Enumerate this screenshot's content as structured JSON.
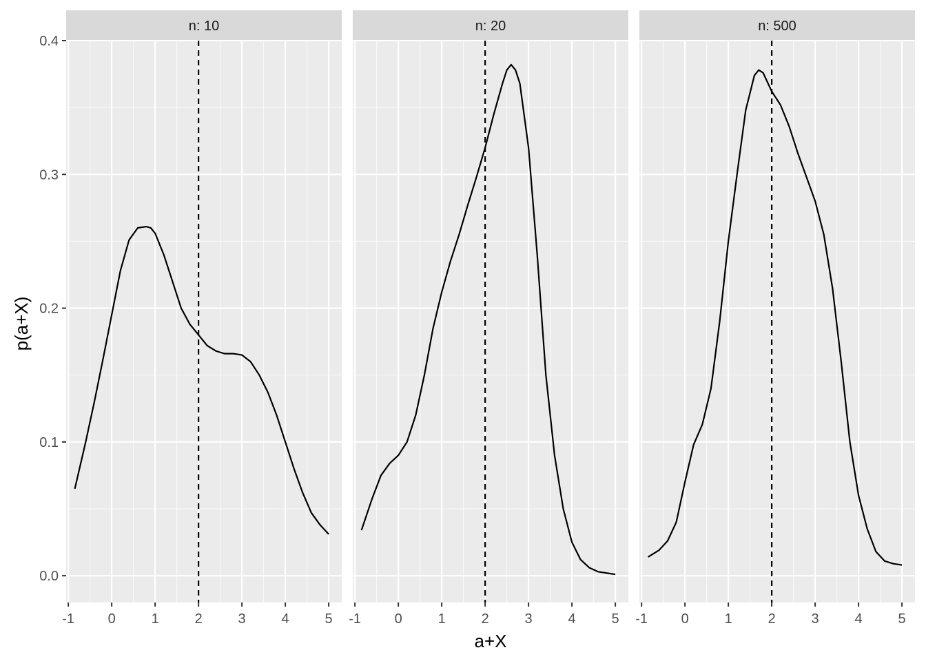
{
  "chart_data": {
    "type": "line",
    "facet_label_prefix": "n: ",
    "xlabel": "a+X",
    "ylabel": "p(a+X)",
    "xlim": [
      -1.05,
      5.3
    ],
    "ylim": [
      -0.02,
      0.4
    ],
    "x_ticks": [
      -1,
      0,
      1,
      2,
      3,
      4,
      5
    ],
    "x_tick_labels": [
      "-1",
      "0",
      "1",
      "2",
      "3",
      "4",
      "5"
    ],
    "y_ticks": [
      0.0,
      0.1,
      0.2,
      0.3,
      0.4
    ],
    "y_tick_labels": [
      "0.0",
      "0.1",
      "0.2",
      "0.3",
      "0.4"
    ],
    "reference_line_x": 2,
    "grid": true,
    "line_color": "#000000",
    "panel_background": "#ebebeb",
    "strip_background": "#d9d9d9",
    "facets": [
      {
        "label": "n: 10",
        "x": [
          -0.85,
          -0.6,
          -0.4,
          -0.2,
          0.0,
          0.2,
          0.4,
          0.6,
          0.8,
          0.9,
          1.0,
          1.2,
          1.4,
          1.6,
          1.8,
          2.0,
          2.2,
          2.4,
          2.6,
          2.8,
          3.0,
          3.2,
          3.4,
          3.6,
          3.8,
          4.0,
          4.2,
          4.4,
          4.6,
          4.8,
          5.0
        ],
        "y": [
          0.065,
          0.1,
          0.13,
          0.162,
          0.195,
          0.228,
          0.251,
          0.26,
          0.261,
          0.26,
          0.256,
          0.24,
          0.22,
          0.2,
          0.188,
          0.18,
          0.172,
          0.168,
          0.166,
          0.166,
          0.165,
          0.16,
          0.15,
          0.137,
          0.12,
          0.1,
          0.08,
          0.062,
          0.047,
          0.038,
          0.031
        ]
      },
      {
        "label": "n: 20",
        "x": [
          -0.85,
          -0.6,
          -0.4,
          -0.2,
          0.0,
          0.2,
          0.4,
          0.6,
          0.8,
          1.0,
          1.2,
          1.4,
          1.6,
          1.8,
          2.0,
          2.2,
          2.4,
          2.5,
          2.6,
          2.7,
          2.8,
          3.0,
          3.2,
          3.4,
          3.6,
          3.8,
          4.0,
          4.2,
          4.4,
          4.6,
          4.8,
          5.0
        ],
        "y": [
          0.034,
          0.058,
          0.075,
          0.084,
          0.09,
          0.1,
          0.12,
          0.15,
          0.185,
          0.212,
          0.235,
          0.255,
          0.277,
          0.298,
          0.32,
          0.345,
          0.368,
          0.378,
          0.382,
          0.378,
          0.368,
          0.32,
          0.24,
          0.15,
          0.09,
          0.05,
          0.025,
          0.012,
          0.006,
          0.003,
          0.002,
          0.001
        ]
      },
      {
        "label": "n: 500",
        "x": [
          -0.85,
          -0.6,
          -0.4,
          -0.2,
          0.0,
          0.2,
          0.4,
          0.6,
          0.8,
          1.0,
          1.2,
          1.4,
          1.6,
          1.7,
          1.8,
          2.0,
          2.2,
          2.4,
          2.6,
          2.8,
          3.0,
          3.2,
          3.4,
          3.6,
          3.8,
          4.0,
          4.2,
          4.4,
          4.6,
          4.8,
          5.0
        ],
        "y": [
          0.014,
          0.019,
          0.026,
          0.04,
          0.07,
          0.098,
          0.113,
          0.14,
          0.19,
          0.25,
          0.3,
          0.348,
          0.374,
          0.378,
          0.376,
          0.362,
          0.352,
          0.336,
          0.316,
          0.298,
          0.28,
          0.255,
          0.215,
          0.16,
          0.1,
          0.06,
          0.035,
          0.018,
          0.011,
          0.009,
          0.008
        ]
      }
    ]
  }
}
